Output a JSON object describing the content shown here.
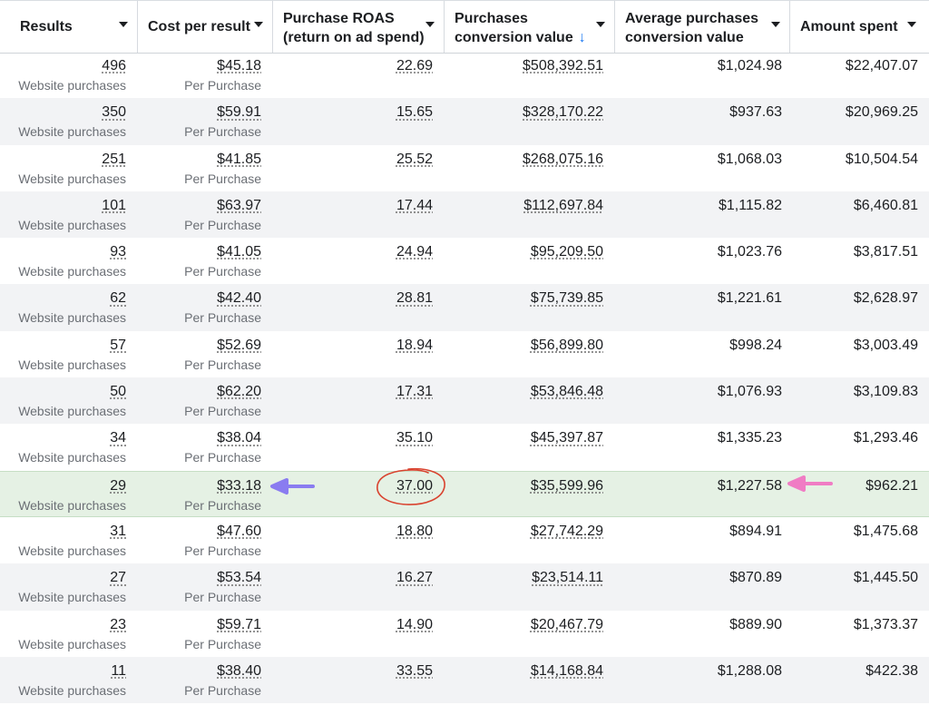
{
  "columns": [
    {
      "label_line1": "Results",
      "label_line2": ""
    },
    {
      "label_line1": "Cost per result",
      "label_line2": ""
    },
    {
      "label_line1": "Purchase ROAS",
      "label_line2": "(return on ad spend)"
    },
    {
      "label_line1": "Purchases",
      "label_line2": "conversion value",
      "sort_indicator": "↓"
    },
    {
      "label_line1": "Average purchases",
      "label_line2": "conversion value"
    },
    {
      "label_line1": "Amount spent",
      "label_line2": ""
    }
  ],
  "rows": [
    {
      "results": "496",
      "results_sub": "Website purchases",
      "cpr": "$45.18",
      "cpr_sub": "Per Purchase",
      "roas": "22.69",
      "pcv": "$508,392.51",
      "apcv": "$1,024.98",
      "amount": "$22,407.07"
    },
    {
      "results": "350",
      "results_sub": "Website purchases",
      "cpr": "$59.91",
      "cpr_sub": "Per Purchase",
      "roas": "15.65",
      "pcv": "$328,170.22",
      "apcv": "$937.63",
      "amount": "$20,969.25"
    },
    {
      "results": "251",
      "results_sub": "Website purchases",
      "cpr": "$41.85",
      "cpr_sub": "Per Purchase",
      "roas": "25.52",
      "pcv": "$268,075.16",
      "apcv": "$1,068.03",
      "amount": "$10,504.54"
    },
    {
      "results": "101",
      "results_sub": "Website purchases",
      "cpr": "$63.97",
      "cpr_sub": "Per Purchase",
      "roas": "17.44",
      "pcv": "$112,697.84",
      "apcv": "$1,115.82",
      "amount": "$6,460.81"
    },
    {
      "results": "93",
      "results_sub": "Website purchases",
      "cpr": "$41.05",
      "cpr_sub": "Per Purchase",
      "roas": "24.94",
      "pcv": "$95,209.50",
      "apcv": "$1,023.76",
      "amount": "$3,817.51"
    },
    {
      "results": "62",
      "results_sub": "Website purchases",
      "cpr": "$42.40",
      "cpr_sub": "Per Purchase",
      "roas": "28.81",
      "pcv": "$75,739.85",
      "apcv": "$1,221.61",
      "amount": "$2,628.97"
    },
    {
      "results": "57",
      "results_sub": "Website purchases",
      "cpr": "$52.69",
      "cpr_sub": "Per Purchase",
      "roas": "18.94",
      "pcv": "$56,899.80",
      "apcv": "$998.24",
      "amount": "$3,003.49"
    },
    {
      "results": "50",
      "results_sub": "Website purchases",
      "cpr": "$62.20",
      "cpr_sub": "Per Purchase",
      "roas": "17.31",
      "pcv": "$53,846.48",
      "apcv": "$1,076.93",
      "amount": "$3,109.83"
    },
    {
      "results": "34",
      "results_sub": "Website purchases",
      "cpr": "$38.04",
      "cpr_sub": "Per Purchase",
      "roas": "35.10",
      "pcv": "$45,397.87",
      "apcv": "$1,335.23",
      "amount": "$1,293.46"
    },
    {
      "results": "29",
      "results_sub": "Website purchases",
      "cpr": "$33.18",
      "cpr_sub": "Per Purchase",
      "roas": "37.00",
      "pcv": "$35,599.96",
      "apcv": "$1,227.58",
      "amount": "$962.21",
      "highlighted": true
    },
    {
      "results": "31",
      "results_sub": "Website purchases",
      "cpr": "$47.60",
      "cpr_sub": "Per Purchase",
      "roas": "18.80",
      "pcv": "$27,742.29",
      "apcv": "$894.91",
      "amount": "$1,475.68"
    },
    {
      "results": "27",
      "results_sub": "Website purchases",
      "cpr": "$53.54",
      "cpr_sub": "Per Purchase",
      "roas": "16.27",
      "pcv": "$23,514.11",
      "apcv": "$870.89",
      "amount": "$1,445.50"
    },
    {
      "results": "23",
      "results_sub": "Website purchases",
      "cpr": "$59.71",
      "cpr_sub": "Per Purchase",
      "roas": "14.90",
      "pcv": "$20,467.79",
      "apcv": "$889.90",
      "amount": "$1,373.37"
    },
    {
      "results": "11",
      "results_sub": "Website purchases",
      "cpr": "$38.40",
      "cpr_sub": "Per Purchase",
      "roas": "33.55",
      "pcv": "$14,168.84",
      "apcv": "$1,288.08",
      "amount": "$422.38"
    }
  ],
  "annotations": {
    "arrow_left_color": "#8a7cf0",
    "arrow_right_color": "#f07cc4",
    "circle_color": "#d9432f",
    "highlight_color": "#e5f1e4"
  }
}
